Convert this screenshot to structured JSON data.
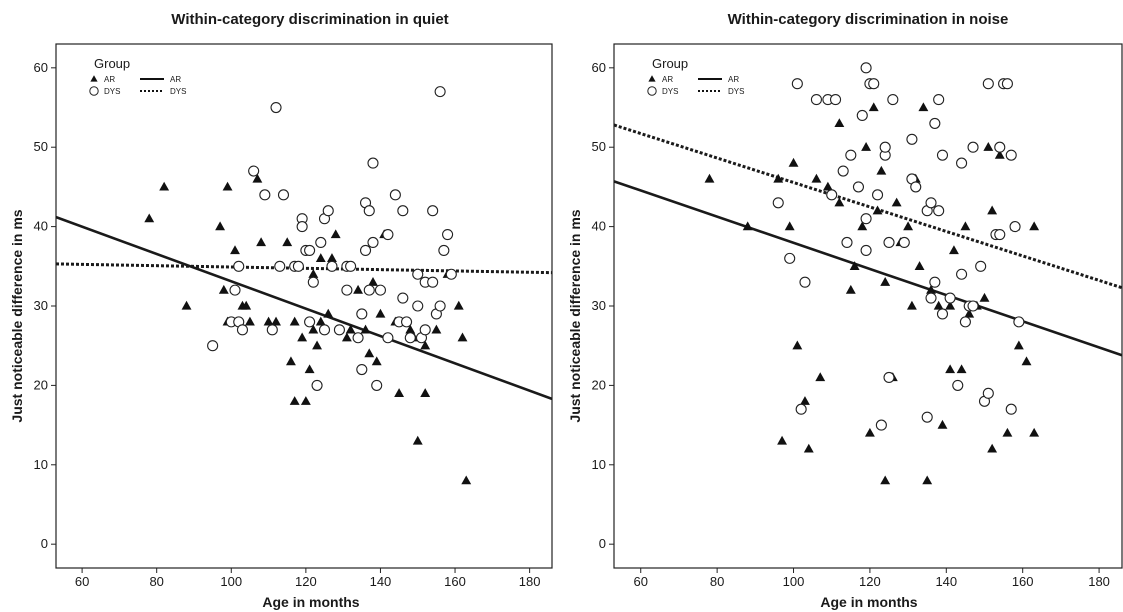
{
  "chart_data": [
    {
      "type": "scatter",
      "title": "Within-category discrimination in quiet",
      "xlabel": "Age in months",
      "ylabel": "Just noticeable difference in ms",
      "xlim": [
        53,
        186
      ],
      "ylim": [
        -3,
        63
      ],
      "xticks": [
        60,
        80,
        100,
        120,
        140,
        160,
        180
      ],
      "yticks": [
        0,
        10,
        20,
        30,
        40,
        50,
        60
      ],
      "legend": {
        "title": "Group",
        "placement": "top-left",
        "markers": [
          "AR",
          "DYS"
        ],
        "lines": [
          "AR",
          "DYS"
        ]
      },
      "series": [
        {
          "name": "AR",
          "marker": "filled-triangle",
          "points": [
            [
              78,
              41
            ],
            [
              82,
              45
            ],
            [
              88,
              30
            ],
            [
              97,
              40
            ],
            [
              98,
              32
            ],
            [
              99,
              28
            ],
            [
              99,
              45
            ],
            [
              101,
              37
            ],
            [
              103,
              30
            ],
            [
              104,
              30
            ],
            [
              105,
              28
            ],
            [
              107,
              46
            ],
            [
              108,
              38
            ],
            [
              110,
              28
            ],
            [
              112,
              28
            ],
            [
              115,
              38
            ],
            [
              116,
              23
            ],
            [
              117,
              28
            ],
            [
              117,
              18
            ],
            [
              118,
              35
            ],
            [
              119,
              26
            ],
            [
              120,
              18
            ],
            [
              121,
              22
            ],
            [
              122,
              27
            ],
            [
              123,
              25
            ],
            [
              122,
              34
            ],
            [
              124,
              36
            ],
            [
              124,
              28
            ],
            [
              126,
              29
            ],
            [
              127,
              36
            ],
            [
              128,
              39
            ],
            [
              131,
              26
            ],
            [
              132,
              27
            ],
            [
              134,
              32
            ],
            [
              136,
              27
            ],
            [
              137,
              24
            ],
            [
              138,
              33
            ],
            [
              139,
              23
            ],
            [
              140,
              29
            ],
            [
              141,
              39
            ],
            [
              144,
              28
            ],
            [
              145,
              19
            ],
            [
              148,
              27
            ],
            [
              149,
              26
            ],
            [
              150,
              13
            ],
            [
              152,
              25
            ],
            [
              152,
              19
            ],
            [
              155,
              27
            ],
            [
              158,
              34
            ],
            [
              161,
              30
            ],
            [
              162,
              26
            ],
            [
              163,
              8
            ]
          ]
        },
        {
          "name": "DYS",
          "marker": "open-circle",
          "points": [
            [
              95,
              25
            ],
            [
              100,
              28
            ],
            [
              101,
              32
            ],
            [
              102,
              35
            ],
            [
              102,
              28
            ],
            [
              103,
              27
            ],
            [
              106,
              47
            ],
            [
              109,
              44
            ],
            [
              111,
              27
            ],
            [
              112,
              55
            ],
            [
              113,
              35
            ],
            [
              114,
              44
            ],
            [
              117,
              35
            ],
            [
              118,
              35
            ],
            [
              119,
              41
            ],
            [
              119,
              40
            ],
            [
              120,
              37
            ],
            [
              121,
              37
            ],
            [
              121,
              28
            ],
            [
              122,
              33
            ],
            [
              123,
              20
            ],
            [
              124,
              38
            ],
            [
              125,
              27
            ],
            [
              125,
              41
            ],
            [
              126,
              42
            ],
            [
              127,
              35
            ],
            [
              129,
              27
            ],
            [
              131,
              35
            ],
            [
              131,
              32
            ],
            [
              132,
              35
            ],
            [
              134,
              26
            ],
            [
              135,
              29
            ],
            [
              135,
              22
            ],
            [
              136,
              37
            ],
            [
              136,
              43
            ],
            [
              137,
              32
            ],
            [
              137,
              42
            ],
            [
              138,
              48
            ],
            [
              138,
              38
            ],
            [
              139,
              20
            ],
            [
              140,
              32
            ],
            [
              142,
              39
            ],
            [
              142,
              26
            ],
            [
              144,
              44
            ],
            [
              145,
              28
            ],
            [
              146,
              42
            ],
            [
              146,
              31
            ],
            [
              147,
              28
            ],
            [
              148,
              26
            ],
            [
              150,
              34
            ],
            [
              150,
              30
            ],
            [
              151,
              26
            ],
            [
              152,
              27
            ],
            [
              152,
              33
            ],
            [
              154,
              33
            ],
            [
              154,
              42
            ],
            [
              155,
              29
            ],
            [
              156,
              57
            ],
            [
              156,
              30
            ],
            [
              157,
              37
            ],
            [
              158,
              39
            ],
            [
              159,
              34
            ]
          ]
        }
      ],
      "fit_lines": [
        {
          "name": "AR",
          "style": "solid",
          "x": [
            53,
            186
          ],
          "y": [
            41.2,
            18.3
          ]
        },
        {
          "name": "DYS",
          "style": "dotted",
          "x": [
            53,
            186
          ],
          "y": [
            35.3,
            34.2
          ]
        }
      ]
    },
    {
      "type": "scatter",
      "title": "Within-category discrimination in noise",
      "xlabel": "Age in months",
      "ylabel": "Just noticeable difference in ms",
      "xlim": [
        53,
        186
      ],
      "ylim": [
        -3,
        63
      ],
      "xticks": [
        60,
        80,
        100,
        120,
        140,
        160,
        180
      ],
      "yticks": [
        0,
        10,
        20,
        30,
        40,
        50,
        60
      ],
      "legend": {
        "title": "Group",
        "placement": "top-left",
        "markers": [
          "AR",
          "DYS"
        ],
        "lines": [
          "AR",
          "DYS"
        ]
      },
      "series": [
        {
          "name": "AR",
          "marker": "filled-triangle",
          "points": [
            [
              78,
              46
            ],
            [
              88,
              40
            ],
            [
              96,
              46
            ],
            [
              97,
              13
            ],
            [
              99,
              40
            ],
            [
              100,
              48
            ],
            [
              101,
              25
            ],
            [
              103,
              18
            ],
            [
              104,
              12
            ],
            [
              106,
              46
            ],
            [
              107,
              21
            ],
            [
              109,
              45
            ],
            [
              112,
              43
            ],
            [
              112,
              53
            ],
            [
              115,
              32
            ],
            [
              116,
              35
            ],
            [
              118,
              40
            ],
            [
              119,
              50
            ],
            [
              120,
              14
            ],
            [
              121,
              55
            ],
            [
              121,
              58
            ],
            [
              122,
              42
            ],
            [
              123,
              47
            ],
            [
              124,
              8
            ],
            [
              124,
              33
            ],
            [
              126,
              21
            ],
            [
              127,
              43
            ],
            [
              128,
              38
            ],
            [
              130,
              40
            ],
            [
              131,
              30
            ],
            [
              132,
              46
            ],
            [
              133,
              35
            ],
            [
              134,
              55
            ],
            [
              135,
              8
            ],
            [
              136,
              32
            ],
            [
              138,
              30
            ],
            [
              139,
              15
            ],
            [
              141,
              30
            ],
            [
              141,
              22
            ],
            [
              142,
              37
            ],
            [
              144,
              22
            ],
            [
              145,
              40
            ],
            [
              146,
              29
            ],
            [
              148,
              30
            ],
            [
              150,
              31
            ],
            [
              151,
              50
            ],
            [
              152,
              42
            ],
            [
              152,
              12
            ],
            [
              153,
              39
            ],
            [
              154,
              49
            ],
            [
              156,
              14
            ],
            [
              158,
              40
            ],
            [
              159,
              25
            ],
            [
              161,
              23
            ],
            [
              163,
              14
            ],
            [
              163,
              40
            ]
          ]
        },
        {
          "name": "DYS",
          "marker": "open-circle",
          "points": [
            [
              96,
              43
            ],
            [
              99,
              36
            ],
            [
              101,
              58
            ],
            [
              102,
              17
            ],
            [
              103,
              33
            ],
            [
              106,
              56
            ],
            [
              109,
              56
            ],
            [
              110,
              44
            ],
            [
              111,
              56
            ],
            [
              113,
              47
            ],
            [
              114,
              38
            ],
            [
              115,
              49
            ],
            [
              117,
              45
            ],
            [
              118,
              54
            ],
            [
              119,
              37
            ],
            [
              119,
              41
            ],
            [
              119,
              60
            ],
            [
              120,
              58
            ],
            [
              121,
              58
            ],
            [
              122,
              44
            ],
            [
              123,
              15
            ],
            [
              124,
              49
            ],
            [
              124,
              50
            ],
            [
              125,
              21
            ],
            [
              125,
              38
            ],
            [
              126,
              56
            ],
            [
              129,
              38
            ],
            [
              131,
              46
            ],
            [
              131,
              51
            ],
            [
              132,
              45
            ],
            [
              135,
              16
            ],
            [
              135,
              42
            ],
            [
              136,
              31
            ],
            [
              136,
              43
            ],
            [
              137,
              33
            ],
            [
              137,
              53
            ],
            [
              138,
              56
            ],
            [
              138,
              42
            ],
            [
              139,
              49
            ],
            [
              139,
              29
            ],
            [
              141,
              31
            ],
            [
              143,
              20
            ],
            [
              144,
              48
            ],
            [
              144,
              34
            ],
            [
              145,
              28
            ],
            [
              146,
              30
            ],
            [
              147,
              30
            ],
            [
              147,
              50
            ],
            [
              149,
              35
            ],
            [
              150,
              18
            ],
            [
              151,
              19
            ],
            [
              151,
              58
            ],
            [
              153,
              39
            ],
            [
              154,
              50
            ],
            [
              154,
              39
            ],
            [
              155,
              58
            ],
            [
              156,
              58
            ],
            [
              157,
              17
            ],
            [
              157,
              49
            ],
            [
              158,
              40
            ],
            [
              159,
              28
            ]
          ]
        }
      ],
      "fit_lines": [
        {
          "name": "AR",
          "style": "solid",
          "x": [
            53,
            186
          ],
          "y": [
            45.7,
            23.8
          ]
        },
        {
          "name": "DYS",
          "style": "dotted",
          "x": [
            53,
            186
          ],
          "y": [
            52.8,
            32.3
          ]
        }
      ]
    }
  ]
}
